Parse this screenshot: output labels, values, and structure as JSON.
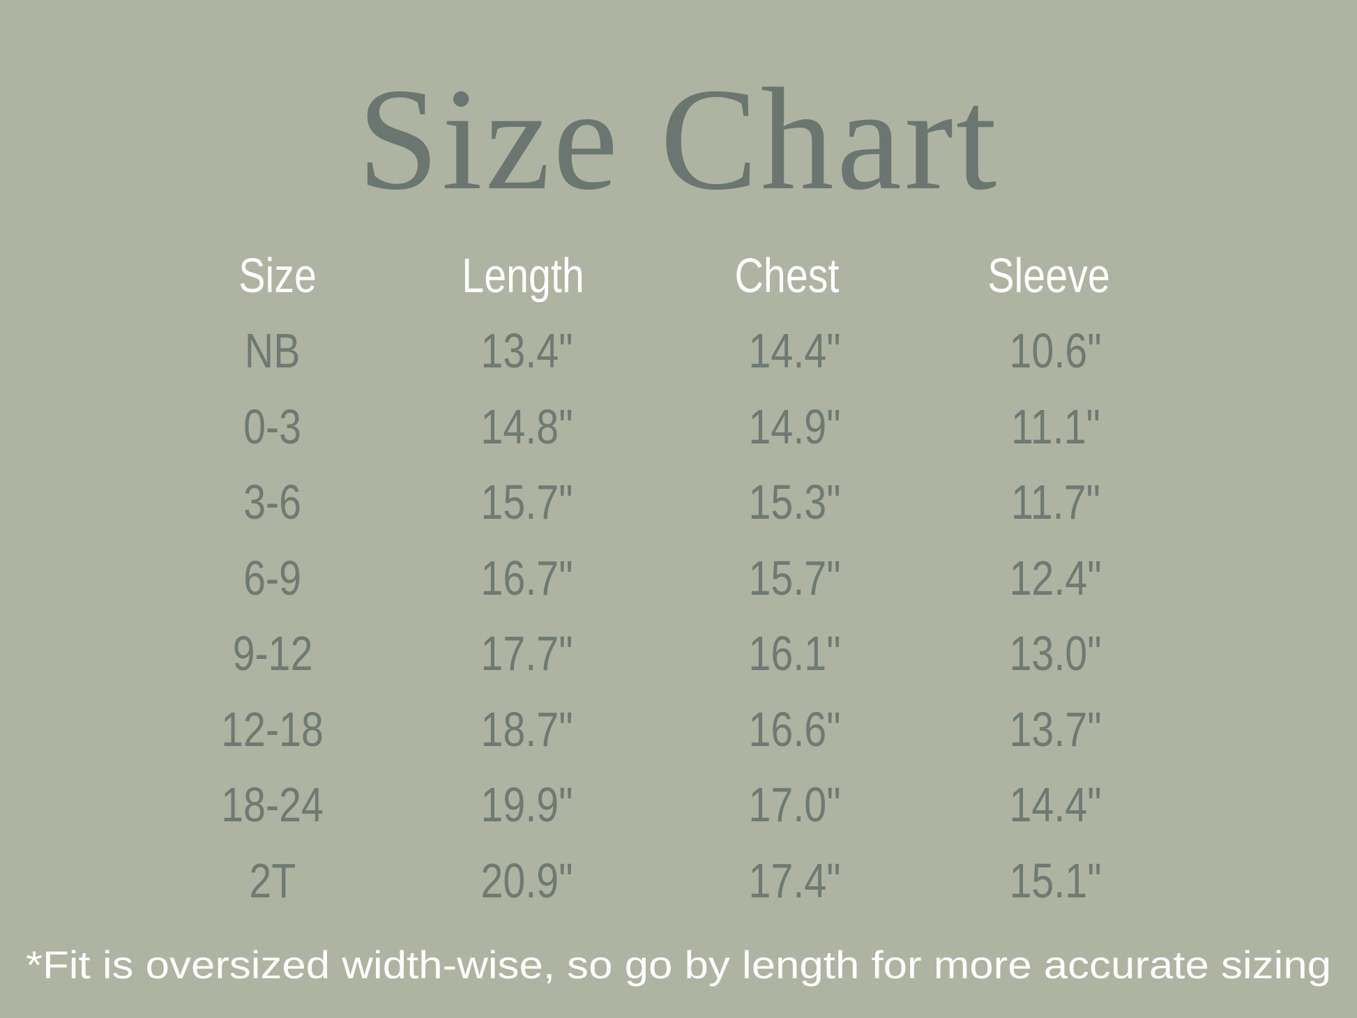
{
  "title": "Size Chart",
  "colors": {
    "background": "#afb3a2",
    "title": "#6c7670",
    "header": "#ffffff",
    "values": "#6e7a72",
    "footnote": "#ffffff"
  },
  "table": {
    "columns": [
      "Size",
      "Length",
      "Chest",
      "Sleeve"
    ],
    "rows": [
      [
        "NB",
        "13.4\"",
        "14.4\"",
        "10.6\""
      ],
      [
        "0-3",
        "14.8\"",
        "14.9\"",
        "11.1\""
      ],
      [
        "3-6",
        "15.7\"",
        "15.3\"",
        "11.7\""
      ],
      [
        "6-9",
        "16.7\"",
        "15.7\"",
        "12.4\""
      ],
      [
        "9-12",
        "17.7\"",
        "16.1\"",
        "13.0\""
      ],
      [
        "12-18",
        "18.7\"",
        "16.6\"",
        "13.7\""
      ],
      [
        "18-24",
        "19.9\"",
        "17.0\"",
        "14.4\""
      ],
      [
        "2T",
        "20.9\"",
        "17.4\"",
        "15.1\""
      ]
    ]
  },
  "footnote": "*Fit is oversized width-wise, so go by length for more accurate sizing"
}
